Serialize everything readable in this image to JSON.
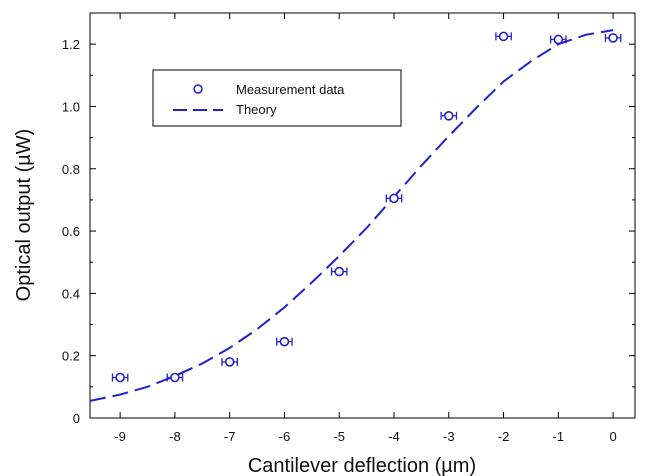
{
  "chart_data": {
    "type": "scatter",
    "title": "",
    "xlabel": "Cantilever deflection (µm)",
    "ylabel": "Optical output (µW)",
    "xlim": [
      -9.55,
      0.4
    ],
    "ylim": [
      0,
      1.3
    ],
    "x_ticks": [
      -9,
      -8,
      -7,
      -6,
      -5,
      -4,
      -3,
      -2,
      -1,
      0
    ],
    "x_tick_labels": [
      "-9",
      "-8",
      "-7",
      "-6",
      "-5",
      "-4",
      "-3",
      "-2",
      "-1",
      "0"
    ],
    "y_ticks": [
      0,
      0.2,
      0.4,
      0.6,
      0.8,
      1.0,
      1.2
    ],
    "y_tick_labels": [
      "0",
      "0.2",
      "0.4",
      "0.6",
      "0.8",
      "1.0",
      "1.2"
    ],
    "grid": false,
    "legend_position": "top-left",
    "series": [
      {
        "name": "Measurement data",
        "kind": "scatter",
        "marker": "open circle",
        "error_bars": "horizontal",
        "x": [
          -9,
          -8,
          -7,
          -6,
          -5,
          -4,
          -3,
          -2,
          -1,
          0
        ],
        "y": [
          0.13,
          0.13,
          0.18,
          0.245,
          0.47,
          0.705,
          0.97,
          1.225,
          1.215,
          1.22
        ],
        "x_error": 0.14
      },
      {
        "name": "Theory",
        "kind": "line",
        "style": "dashed",
        "x": [
          -9.55,
          -9,
          -8.5,
          -8,
          -7.5,
          -7,
          -6.5,
          -6,
          -5.5,
          -5,
          -4.5,
          -4,
          -3.5,
          -3,
          -2.5,
          -2,
          -1.5,
          -1,
          -0.5,
          0
        ],
        "y": [
          0.055,
          0.075,
          0.1,
          0.135,
          0.175,
          0.225,
          0.285,
          0.355,
          0.435,
          0.52,
          0.61,
          0.71,
          0.81,
          0.905,
          0.995,
          1.08,
          1.145,
          1.2,
          1.23,
          1.245
        ]
      }
    ],
    "colors": {
      "series": "#2222cc",
      "axis": "#000000",
      "text": "#111111"
    }
  }
}
